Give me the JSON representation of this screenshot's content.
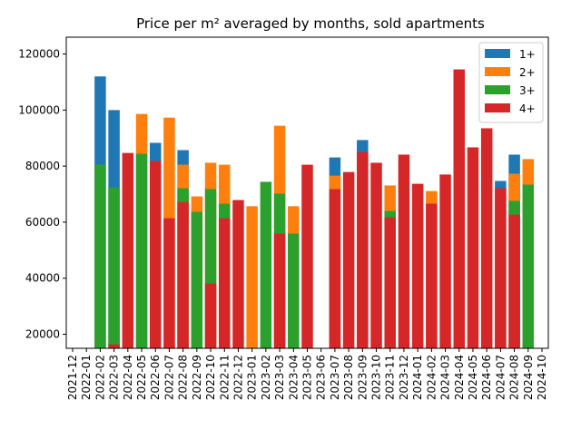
{
  "chart_data": {
    "type": "bar",
    "title": "Price per m² averaged by months, sold apartments",
    "categories": [
      "2021-12",
      "2022-01",
      "2022-02",
      "2022-03",
      "2022-04",
      "2022-05",
      "2022-06",
      "2022-07",
      "2022-08",
      "2022-09",
      "2022-10",
      "2022-11",
      "2022-12",
      "2023-01",
      "2023-02",
      "2023-03",
      "2023-04",
      "2023-05",
      "2023-06",
      "2023-07",
      "2023-08",
      "2023-09",
      "2023-10",
      "2023-11",
      "2023-12",
      "2024-01",
      "2024-02",
      "2024-03",
      "2024-04",
      "2024-05",
      "2024-06",
      "2024-07",
      "2024-08",
      "2024-09",
      "2024-10"
    ],
    "series": [
      {
        "name": "1+",
        "color": "#1f77b4",
        "values": [
          null,
          null,
          112000,
          100000,
          null,
          null,
          88300,
          null,
          85700,
          null,
          null,
          null,
          null,
          null,
          null,
          null,
          null,
          null,
          null,
          83100,
          null,
          89300,
          null,
          null,
          null,
          null,
          null,
          null,
          null,
          null,
          null,
          74700,
          84100,
          null,
          null
        ]
      },
      {
        "name": "2+",
        "color": "#ff7f0e",
        "values": [
          null,
          null,
          null,
          null,
          null,
          98600,
          null,
          97300,
          80500,
          69200,
          81200,
          80500,
          null,
          65700,
          null,
          94400,
          65700,
          null,
          null,
          76600,
          null,
          null,
          null,
          73100,
          null,
          null,
          71100,
          null,
          null,
          null,
          null,
          null,
          77300,
          82500,
          null
        ]
      },
      {
        "name": "3+",
        "color": "#2ca02c",
        "values": [
          null,
          null,
          80500,
          72400,
          null,
          84400,
          null,
          null,
          72100,
          63700,
          71800,
          66600,
          null,
          null,
          74400,
          70200,
          55900,
          null,
          null,
          null,
          null,
          null,
          null,
          64000,
          null,
          null,
          null,
          null,
          null,
          null,
          null,
          null,
          67600,
          73400,
          null
        ]
      },
      {
        "name": "4+",
        "color": "#d62728",
        "values": [
          null,
          null,
          null,
          16400,
          84700,
          null,
          81800,
          61400,
          67200,
          null,
          38100,
          61400,
          67900,
          null,
          null,
          55900,
          null,
          80500,
          null,
          71800,
          77900,
          85000,
          81200,
          61700,
          84100,
          73700,
          66600,
          77000,
          114500,
          86700,
          93500,
          72100,
          62700,
          null,
          null
        ]
      }
    ],
    "ylim": [
      15000,
      126000
    ],
    "yticks": [
      20000,
      40000,
      60000,
      80000,
      100000,
      120000
    ],
    "legend": "upper right"
  }
}
